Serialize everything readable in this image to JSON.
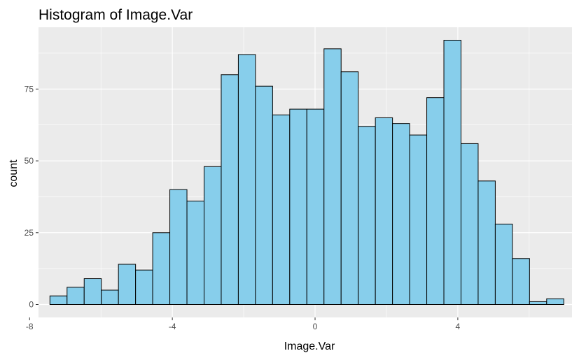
{
  "chart_data": {
    "type": "bar",
    "title": "Histogram of Image.Var",
    "xlabel": "Image.Var",
    "ylabel": "count",
    "xlim": [
      -7.75,
      7.2
    ],
    "ylim": [
      -4.5,
      96.5
    ],
    "x_ticks": [
      -8,
      -4,
      0,
      4
    ],
    "x_tick_labels": [
      "-8",
      "-4",
      "0",
      "4"
    ],
    "y_ticks": [
      0,
      25,
      50,
      75
    ],
    "y_tick_labels": [
      "0",
      "25",
      "50",
      "75"
    ],
    "grid": true,
    "bin_width": 0.48,
    "bin_starts": [
      -7.43,
      -6.95,
      -6.47,
      -5.99,
      -5.51,
      -5.03,
      -4.55,
      -4.07,
      -3.59,
      -3.11,
      -2.63,
      -2.15,
      -1.67,
      -1.19,
      -0.71,
      -0.23,
      0.25,
      0.73,
      1.21,
      1.69,
      2.17,
      2.65,
      3.13,
      3.61,
      4.09,
      4.57,
      5.05,
      5.53,
      6.01,
      6.49
    ],
    "values": [
      3,
      6,
      9,
      5,
      14,
      12,
      25,
      40,
      36,
      48,
      80,
      87,
      76,
      66,
      68,
      68,
      89,
      81,
      62,
      65,
      63,
      59,
      72,
      92,
      56,
      43,
      28,
      16,
      1,
      2
    ],
    "fill_color": "#87CEEB",
    "edge_color": "#000000",
    "panel_color": "#EBEBEB",
    "gridline_color": "#FFFFFF"
  }
}
